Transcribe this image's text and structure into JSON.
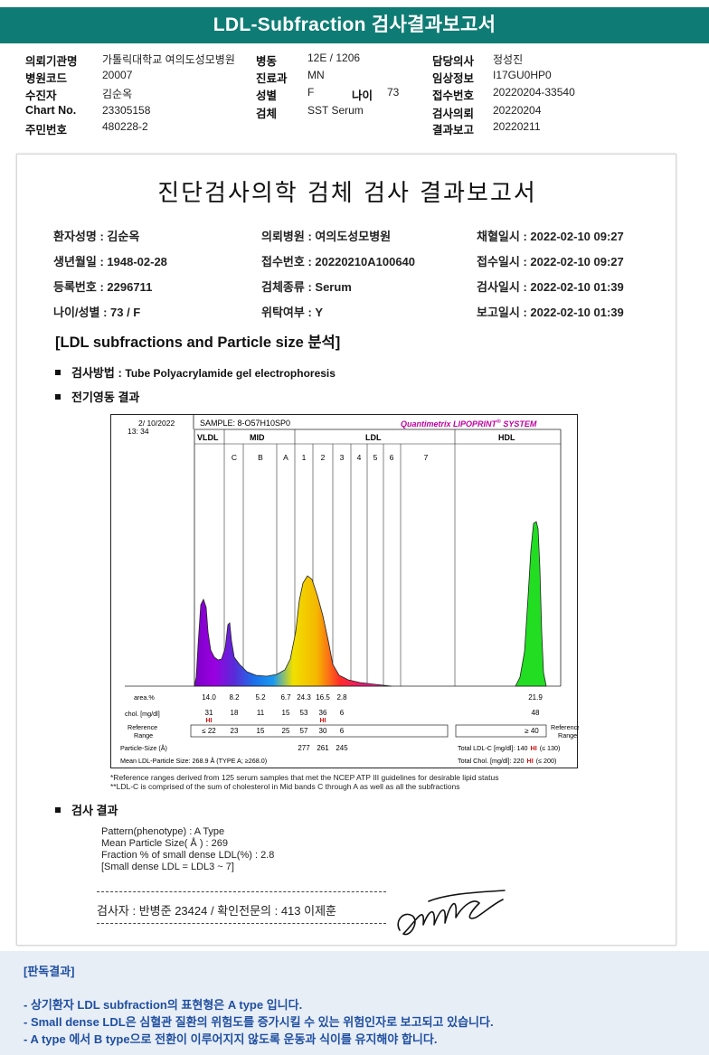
{
  "header": {
    "title": "LDL-Subfraction 검사결과보고서",
    "fields": [
      {
        "label": "의뢰기관명",
        "value": "가톨릭대학교 여의도성모병원"
      },
      {
        "label": "병동",
        "value": "12E / 1206"
      },
      {
        "label": "담당의사",
        "value": "정성진"
      },
      {
        "label": "병원코드",
        "value": "20007"
      },
      {
        "label": "진료과",
        "value": "MN"
      },
      {
        "label": "임상정보",
        "value": "I17GU0HP0"
      },
      {
        "label": "수진자",
        "value": "김순옥"
      },
      {
        "label": "성별",
        "value": "F"
      },
      {
        "label": "나이",
        "value": "73"
      },
      {
        "label": "접수번호",
        "value": "20220204-33540"
      },
      {
        "label": "Chart No.",
        "value": "23305158"
      },
      {
        "label": "검체",
        "value": "SST Serum"
      },
      {
        "label": "검사의뢰",
        "value": "20220204"
      },
      {
        "label": "주민번호",
        "value": "480228-2"
      },
      {
        "label": "결과보고",
        "value": "20220211"
      }
    ]
  },
  "report": {
    "title": "진단검사의학 검체 검사 결과보고서",
    "patient": [
      {
        "label": "환자성명 : ",
        "value": "김순옥"
      },
      {
        "label": "의뢰병원 : ",
        "value": "여의도성모병원"
      },
      {
        "label": "채혈일시 : ",
        "value": "2022-02-10 09:27"
      },
      {
        "label": "생년월일 : ",
        "value": "1948-02-28"
      },
      {
        "label": "접수번호 : ",
        "value": "20220210A100640"
      },
      {
        "label": "접수일시 : ",
        "value": "2022-02-10 09:27"
      },
      {
        "label": "등록번호 : ",
        "value": "2296711"
      },
      {
        "label": "검체종류 : ",
        "value": "Serum"
      },
      {
        "label": "검사일시 : ",
        "value": "2022-02-10 01:39"
      },
      {
        "label": "나이/성별 : ",
        "value": "73 / F"
      },
      {
        "label": "위탁여부 : ",
        "value": "Y"
      },
      {
        "label": "보고일시 : ",
        "value": "2022-02-10 01:39"
      }
    ],
    "section_title": "[LDL subfractions and Particle size 분석]",
    "method_label": "검사방법 : ",
    "method_value": "Tube Polyacrylamide gel electrophoresis",
    "electro_label": "전기영동 결과",
    "result_label": "검사 결과"
  },
  "chart": {
    "date": "2/ 10/2022",
    "time": "13: 34",
    "sample": "SAMPLE:  8-O57H10SP0",
    "brand_main": "Quantimetrix LIPOPRINT",
    "brand_reg": "®",
    "brand_tail": " SYSTEM",
    "group_labels": {
      "vldl": "VLDL",
      "mid": "MID",
      "ldl": "LDL",
      "hdl": "HDL"
    },
    "band_labels": [
      "C",
      "B",
      "A",
      "1",
      "2",
      "3",
      "4",
      "5",
      "6",
      "7"
    ],
    "row_labels": {
      "area": "area.%",
      "chol": "chol. [mg/dl]",
      "ref1": "Reference",
      "ref2": "Range",
      "psize": "Particle-Size (Å)",
      "mean": "Mean LDL-Particle Size:   268.9 Å   (TYPE A; ≥268.0)"
    },
    "area_values": [
      "14.0",
      "8.2",
      "5.2",
      "6.7",
      "24.3",
      "16.5",
      "2.8",
      "21.9"
    ],
    "chol_values": [
      "31",
      "18",
      "11",
      "15",
      "53",
      "36",
      "6",
      "48"
    ],
    "hi_flags": [
      "HI",
      "HI"
    ],
    "ref_values": [
      "≤ 22",
      "23",
      "15",
      "25",
      "57",
      "30",
      "6",
      "≥ 40"
    ],
    "ref_right1": "Reference",
    "ref_right2": "Range",
    "psize_values": [
      "277",
      "261",
      "245"
    ],
    "total_ldl": {
      "label": "Total LDL-C [mg/dl]:  140",
      "flag": "HI",
      "ref": "(≤ 130)"
    },
    "total_chol": {
      "label": "Total Chol. [mg/dl]:  220",
      "flag": "HI",
      "ref": "(≤ 200)"
    }
  },
  "footnotes": [
    "*Reference ranges derived from 125 serum samples that met the NCEP ATP III guidelines for desirable lipid status",
    "**LDL-C is comprised of the sum of cholesterol in Mid bands C through A as well as all the subfractions"
  ],
  "results": [
    "Pattern(phenotype) : A Type",
    "Mean Particle Size( Å ) : 269",
    "Fraction % of small dense LDL(%) : 2.8",
    "[Small dense LDL = LDL3 ~ 7]"
  ],
  "signer": "검사자 : 반병준  23424  /  확인전문의 : 413  이제훈",
  "judgment": {
    "title": "[판독결과]",
    "lines": [
      "- 상기환자 LDL subfraction의 표현형은 A type 입니다.",
      "-   Small dense LDL은 심혈관 질환의 위험도를 증가시킬 수 있는 위험인자로 보고되고 있습니다.",
      "-   A type 에서 B type으로 전환이 이루어지지 않도록 운동과 식이를 유지해야 합니다."
    ]
  },
  "colors": {
    "header_teal": "#0e7c74",
    "judgment_blue": "#1f4fa0",
    "hi_red": "#d01010",
    "brand_magenta": "#c000a0"
  }
}
